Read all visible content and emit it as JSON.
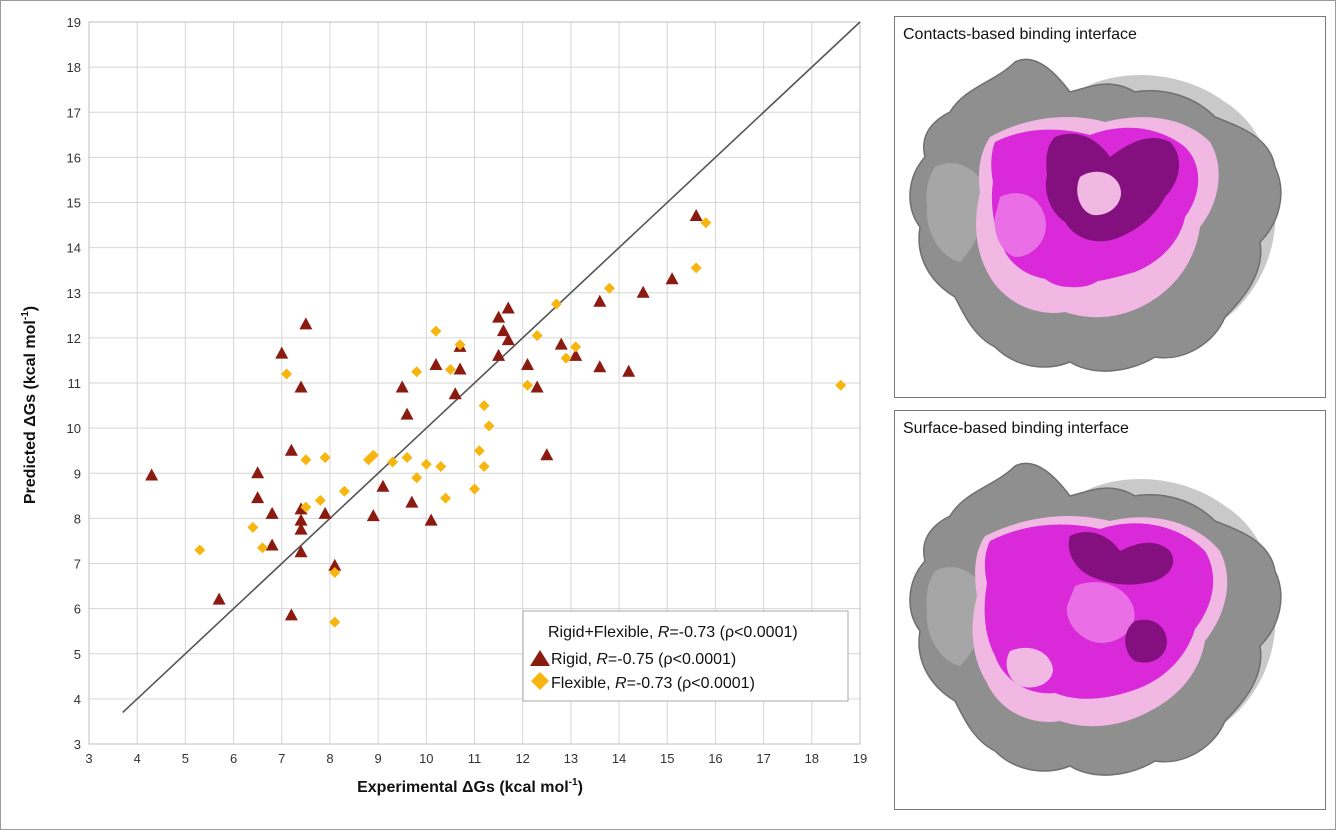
{
  "chart_data": {
    "type": "scatter",
    "xlabel": "Experimental ΔGs (kcal mol",
    "ylabel": "Predicted ΔGs (kcal mol",
    "unit_superscript": "-1",
    "unit_close": ")",
    "xlim": [
      3,
      19
    ],
    "ylim": [
      3,
      19
    ],
    "x_ticks": [
      3,
      4,
      5,
      6,
      7,
      8,
      9,
      10,
      11,
      12,
      13,
      14,
      15,
      16,
      17,
      18,
      19
    ],
    "y_ticks": [
      3,
      4,
      5,
      6,
      7,
      8,
      9,
      10,
      11,
      12,
      13,
      14,
      15,
      16,
      17,
      18,
      19
    ],
    "grid": true,
    "legend_placement": "bottom-right",
    "fit_line": {
      "x": [
        3.7,
        19
      ],
      "y": [
        3.7,
        19
      ]
    },
    "legend": {
      "combined": {
        "prefix": "Rigid+Flexible, ",
        "r": "R",
        "suffix": "=-0.73 (ρ<0.0001)"
      },
      "rigid": {
        "prefix": "Rigid, ",
        "r": "R",
        "suffix": "=-0.75 (ρ<0.0001)"
      },
      "flexible": {
        "prefix": "Flexible, ",
        "r": "R",
        "suffix": "=-0.73 (ρ<0.0001)"
      }
    },
    "series": [
      {
        "name": "Rigid",
        "marker": "triangle",
        "color": "#8B1A10",
        "points": [
          [
            4.3,
            8.95
          ],
          [
            5.7,
            6.2
          ],
          [
            6.5,
            9.0
          ],
          [
            6.5,
            8.45
          ],
          [
            6.8,
            8.1
          ],
          [
            6.8,
            7.4
          ],
          [
            7.0,
            11.65
          ],
          [
            7.2,
            9.5
          ],
          [
            7.2,
            5.85
          ],
          [
            7.4,
            10.9
          ],
          [
            7.4,
            8.2
          ],
          [
            7.4,
            7.95
          ],
          [
            7.4,
            7.75
          ],
          [
            7.4,
            7.25
          ],
          [
            7.5,
            12.3
          ],
          [
            7.9,
            8.1
          ],
          [
            8.1,
            6.95
          ],
          [
            8.9,
            8.05
          ],
          [
            9.1,
            8.7
          ],
          [
            9.5,
            10.9
          ],
          [
            9.6,
            10.3
          ],
          [
            9.7,
            8.35
          ],
          [
            10.1,
            7.95
          ],
          [
            10.2,
            11.4
          ],
          [
            10.6,
            10.75
          ],
          [
            10.7,
            11.8
          ],
          [
            10.7,
            11.3
          ],
          [
            11.5,
            12.45
          ],
          [
            11.5,
            11.6
          ],
          [
            11.6,
            12.15
          ],
          [
            11.7,
            12.65
          ],
          [
            11.7,
            11.95
          ],
          [
            12.1,
            11.4
          ],
          [
            12.3,
            10.9
          ],
          [
            12.5,
            9.4
          ],
          [
            12.8,
            11.85
          ],
          [
            13.1,
            11.6
          ],
          [
            13.6,
            12.8
          ],
          [
            13.6,
            11.35
          ],
          [
            14.2,
            11.25
          ],
          [
            14.5,
            13.0
          ],
          [
            15.1,
            13.3
          ],
          [
            15.6,
            14.7
          ]
        ]
      },
      {
        "name": "Flexible",
        "marker": "diamond",
        "color": "#F7B60F",
        "points": [
          [
            5.3,
            7.3
          ],
          [
            6.4,
            7.8
          ],
          [
            6.6,
            7.35
          ],
          [
            7.1,
            11.2
          ],
          [
            7.5,
            9.3
          ],
          [
            7.5,
            8.25
          ],
          [
            7.8,
            8.4
          ],
          [
            7.9,
            9.35
          ],
          [
            8.1,
            6.8
          ],
          [
            8.1,
            5.7
          ],
          [
            8.3,
            8.6
          ],
          [
            8.8,
            9.3
          ],
          [
            8.9,
            9.4
          ],
          [
            9.3,
            9.25
          ],
          [
            9.6,
            9.35
          ],
          [
            9.8,
            11.25
          ],
          [
            9.8,
            8.9
          ],
          [
            10.0,
            9.2
          ],
          [
            10.2,
            12.15
          ],
          [
            10.3,
            9.15
          ],
          [
            10.4,
            8.45
          ],
          [
            10.5,
            11.3
          ],
          [
            10.7,
            11.85
          ],
          [
            11.0,
            8.65
          ],
          [
            11.1,
            9.5
          ],
          [
            11.2,
            10.5
          ],
          [
            11.2,
            9.15
          ],
          [
            11.3,
            10.05
          ],
          [
            12.1,
            10.95
          ],
          [
            12.3,
            12.05
          ],
          [
            12.7,
            12.75
          ],
          [
            12.9,
            11.55
          ],
          [
            13.1,
            11.8
          ],
          [
            13.8,
            13.1
          ],
          [
            15.6,
            13.55
          ],
          [
            15.8,
            14.55
          ],
          [
            18.6,
            10.95
          ]
        ]
      }
    ]
  },
  "panels": {
    "top_title": "Contacts-based binding interface",
    "bottom_title": "Surface-based binding interface"
  },
  "colors": {
    "grey_surface": "#8f8f8f",
    "grey_light": "#c9c9c9",
    "magenta": "#d929d9",
    "magenta_light": "#ea6fe6",
    "purple_dark": "#84107f",
    "pink_pale": "#f0b8e2",
    "grid": "#d6d6d6",
    "line": "#555555"
  }
}
